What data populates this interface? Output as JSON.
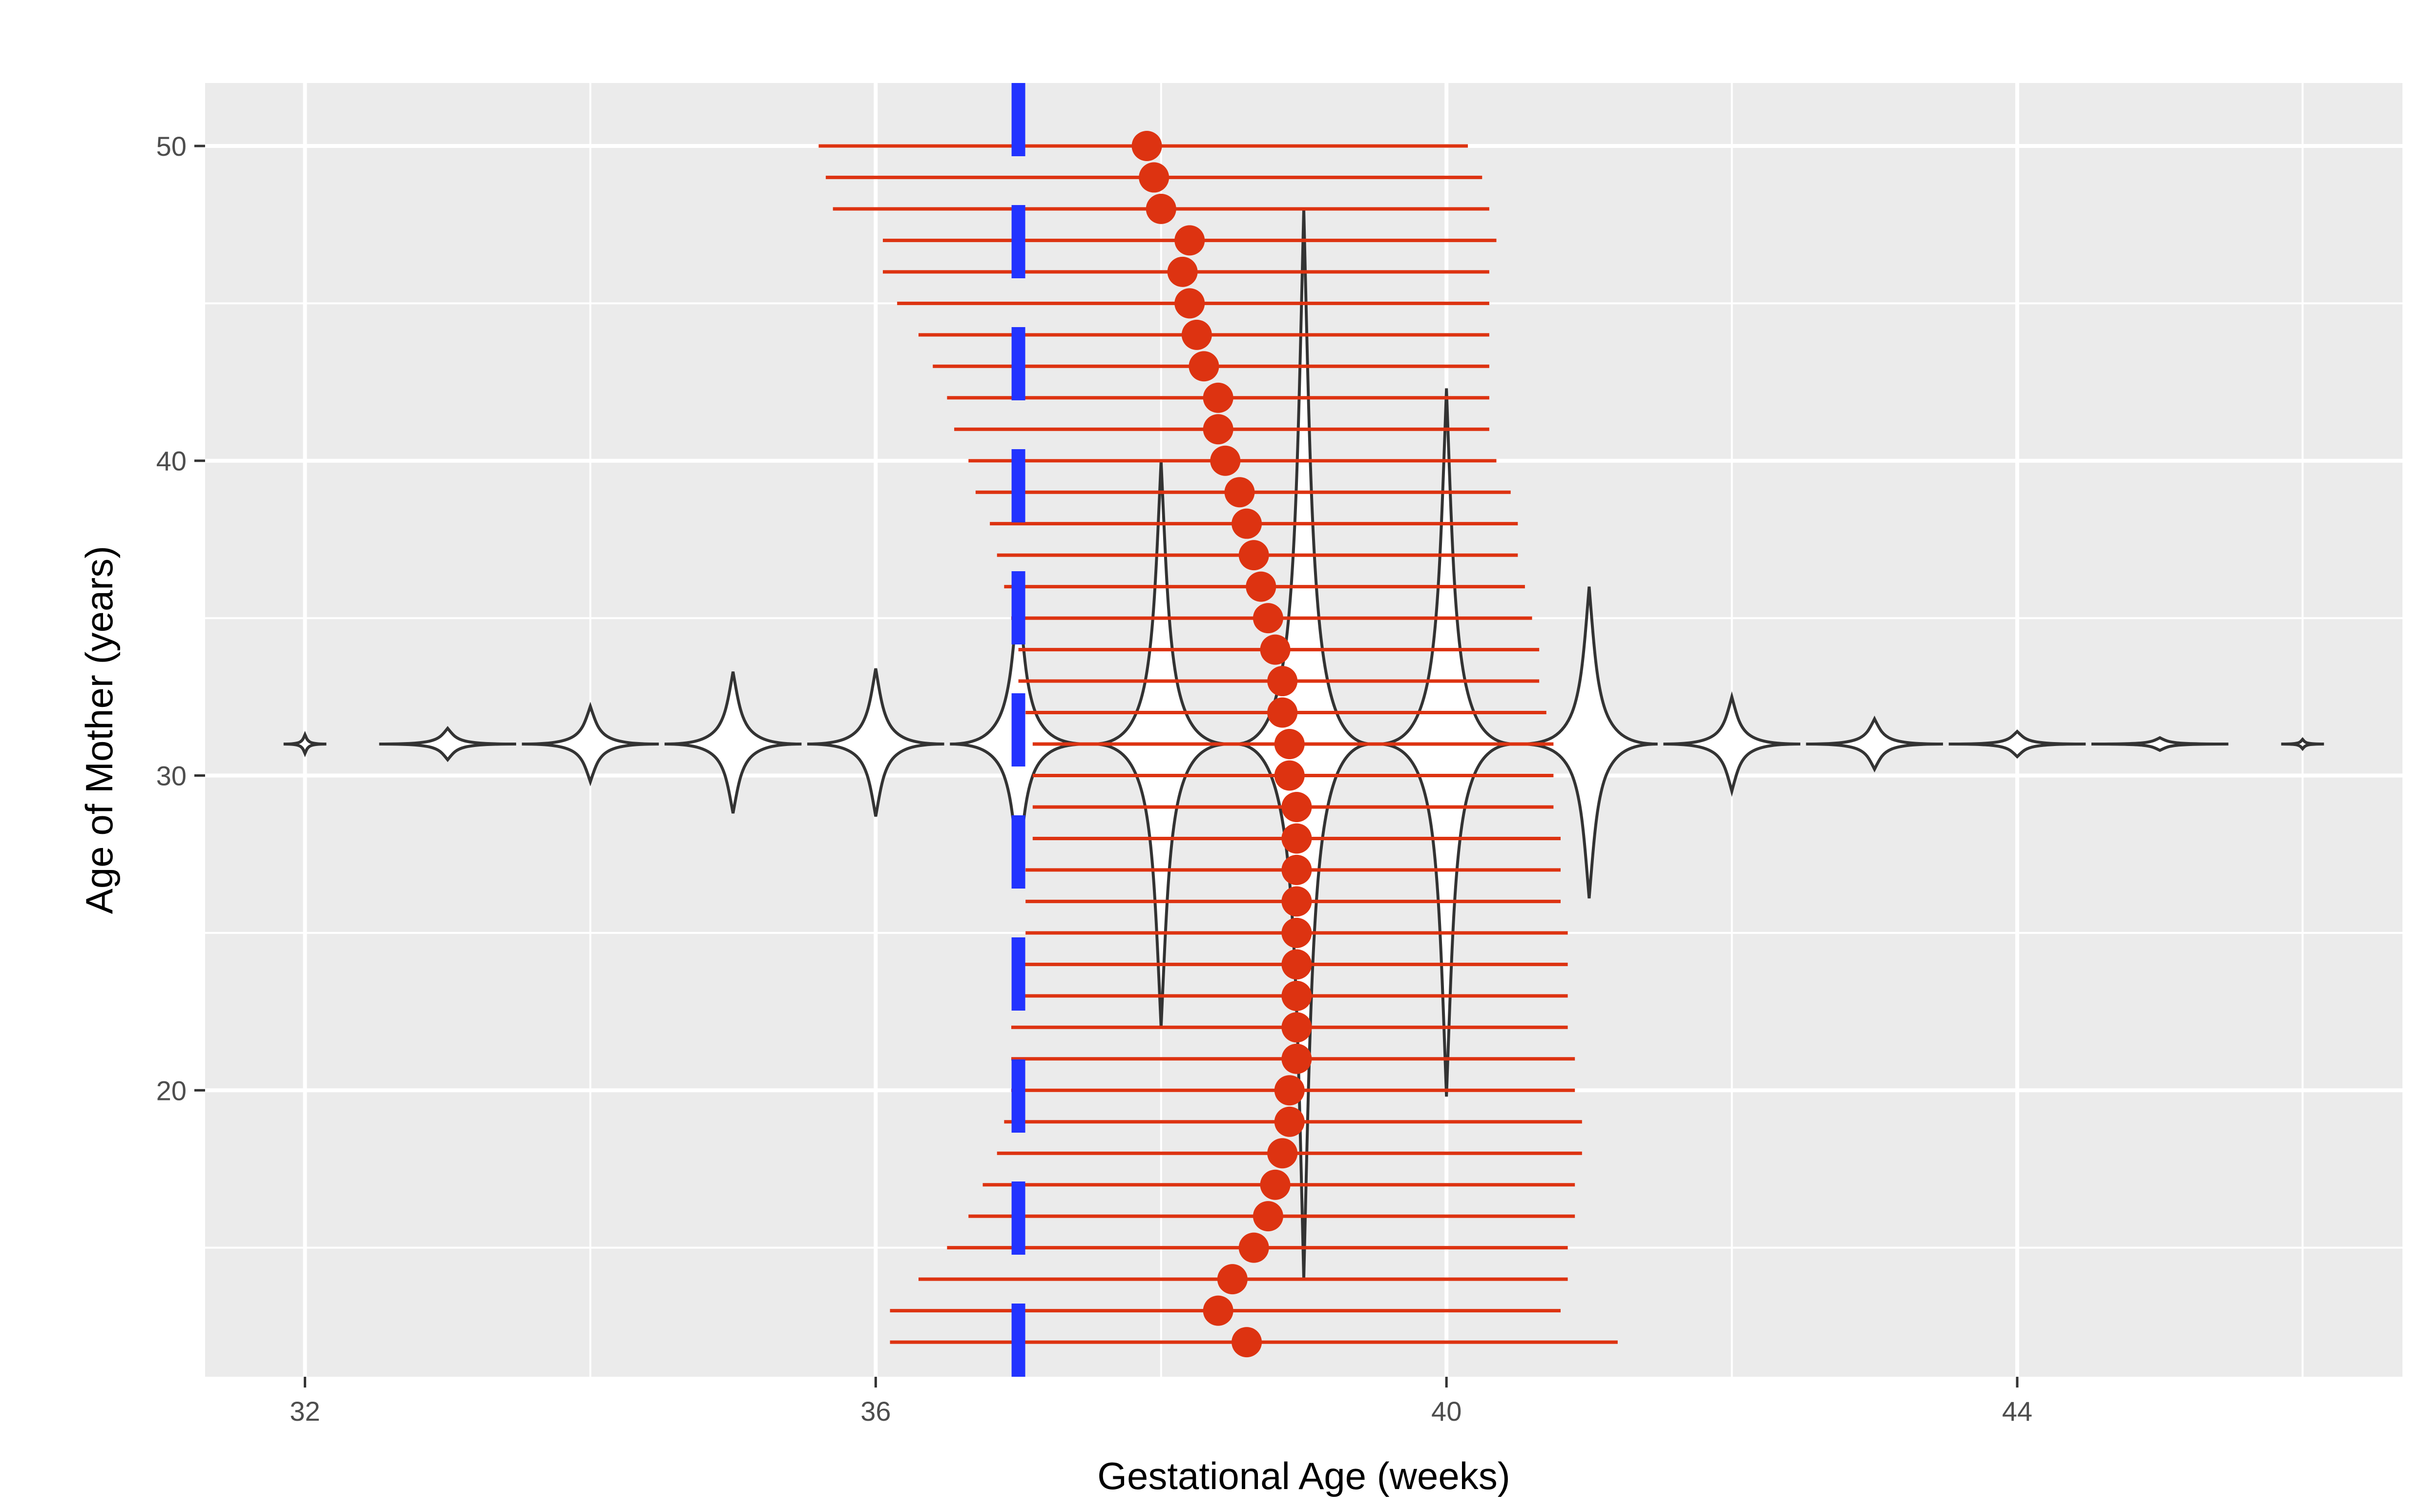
{
  "chart_data": {
    "type": "scatter",
    "xlabel": "Gestational Age (weeks)",
    "ylabel": "Age of Mother (years)",
    "xlim": [
      31.3,
      46.7
    ],
    "ylim": [
      10.9,
      52.0
    ],
    "x_ticks": [
      32,
      36,
      40,
      44
    ],
    "y_ticks": [
      20,
      30,
      40,
      50
    ],
    "grid": true,
    "legend": "none",
    "colors": {
      "panel_bg": "#ebebeb",
      "grid": "#ffffff",
      "points": "#dd3311",
      "intervals": "#dd3311",
      "reference_line": "#2233ff",
      "violin_fill": "#ffffff",
      "violin_stroke": "#333333"
    },
    "reference_line": {
      "orientation": "vertical",
      "x": 37,
      "style": "dashed"
    },
    "violins": {
      "center_y": 31,
      "items": [
        {
          "x": 32,
          "y_min": 30.7,
          "y_max": 31.3
        },
        {
          "x": 33,
          "y_min": 30.5,
          "y_max": 31.5
        },
        {
          "x": 34,
          "y_min": 29.8,
          "y_max": 32.2
        },
        {
          "x": 35,
          "y_min": 28.8,
          "y_max": 33.3
        },
        {
          "x": 36,
          "y_min": 28.7,
          "y_max": 33.4
        },
        {
          "x": 37,
          "y_min": 27.0,
          "y_max": 36.0
        },
        {
          "x": 38,
          "y_min": 22.0,
          "y_max": 40.0
        },
        {
          "x": 39,
          "y_min": 14.0,
          "y_max": 48.0
        },
        {
          "x": 40,
          "y_min": 19.8,
          "y_max": 42.3
        },
        {
          "x": 41,
          "y_min": 26.1,
          "y_max": 36.0
        },
        {
          "x": 42,
          "y_min": 29.5,
          "y_max": 32.5
        },
        {
          "x": 43,
          "y_min": 30.2,
          "y_max": 31.8
        },
        {
          "x": 44,
          "y_min": 30.6,
          "y_max": 31.4
        },
        {
          "x": 45,
          "y_min": 30.8,
          "y_max": 31.2
        },
        {
          "x": 46,
          "y_min": 30.85,
          "y_max": 31.15
        }
      ]
    },
    "series": [
      {
        "values": [
          {
            "y": 50,
            "x": 37.9,
            "lo": 35.6,
            "hi": 40.15
          },
          {
            "y": 49,
            "x": 37.95,
            "lo": 35.65,
            "hi": 40.25
          },
          {
            "y": 48,
            "x": 38.0,
            "lo": 35.7,
            "hi": 40.3
          },
          {
            "y": 47,
            "x": 38.2,
            "lo": 36.05,
            "hi": 40.35
          },
          {
            "y": 46,
            "x": 38.15,
            "lo": 36.05,
            "hi": 40.3
          },
          {
            "y": 45,
            "x": 38.2,
            "lo": 36.15,
            "hi": 40.3
          },
          {
            "y": 44,
            "x": 38.25,
            "lo": 36.3,
            "hi": 40.3
          },
          {
            "y": 43,
            "x": 38.3,
            "lo": 36.4,
            "hi": 40.3
          },
          {
            "y": 42,
            "x": 38.4,
            "lo": 36.5,
            "hi": 40.3
          },
          {
            "y": 41,
            "x": 38.4,
            "lo": 36.55,
            "hi": 40.3
          },
          {
            "y": 40,
            "x": 38.45,
            "lo": 36.65,
            "hi": 40.35
          },
          {
            "y": 39,
            "x": 38.55,
            "lo": 36.7,
            "hi": 40.45
          },
          {
            "y": 38,
            "x": 38.6,
            "lo": 36.8,
            "hi": 40.5
          },
          {
            "y": 37,
            "x": 38.65,
            "lo": 36.85,
            "hi": 40.5
          },
          {
            "y": 36,
            "x": 38.7,
            "lo": 36.9,
            "hi": 40.55
          },
          {
            "y": 35,
            "x": 38.75,
            "lo": 36.95,
            "hi": 40.6
          },
          {
            "y": 34,
            "x": 38.8,
            "lo": 37.0,
            "hi": 40.65
          },
          {
            "y": 33,
            "x": 38.85,
            "lo": 37.0,
            "hi": 40.65
          },
          {
            "y": 32,
            "x": 38.85,
            "lo": 37.05,
            "hi": 40.7
          },
          {
            "y": 31,
            "x": 38.9,
            "lo": 37.1,
            "hi": 40.75
          },
          {
            "y": 30,
            "x": 38.9,
            "lo": 37.1,
            "hi": 40.75
          },
          {
            "y": 29,
            "x": 38.95,
            "lo": 37.1,
            "hi": 40.75
          },
          {
            "y": 28,
            "x": 38.95,
            "lo": 37.1,
            "hi": 40.8
          },
          {
            "y": 27,
            "x": 38.95,
            "lo": 37.05,
            "hi": 40.8
          },
          {
            "y": 26,
            "x": 38.95,
            "lo": 37.05,
            "hi": 40.8
          },
          {
            "y": 25,
            "x": 38.95,
            "lo": 37.05,
            "hi": 40.85
          },
          {
            "y": 24,
            "x": 38.95,
            "lo": 37.0,
            "hi": 40.85
          },
          {
            "y": 23,
            "x": 38.95,
            "lo": 37.0,
            "hi": 40.85
          },
          {
            "y": 22,
            "x": 38.95,
            "lo": 36.95,
            "hi": 40.85
          },
          {
            "y": 21,
            "x": 38.95,
            "lo": 36.95,
            "hi": 40.9
          },
          {
            "y": 20,
            "x": 38.9,
            "lo": 36.95,
            "hi": 40.9
          },
          {
            "y": 19,
            "x": 38.9,
            "lo": 36.9,
            "hi": 40.95
          },
          {
            "y": 18,
            "x": 38.85,
            "lo": 36.85,
            "hi": 40.95
          },
          {
            "y": 17,
            "x": 38.8,
            "lo": 36.75,
            "hi": 40.9
          },
          {
            "y": 16,
            "x": 38.75,
            "lo": 36.65,
            "hi": 40.9
          },
          {
            "y": 15,
            "x": 38.65,
            "lo": 36.5,
            "hi": 40.85
          },
          {
            "y": 14,
            "x": 38.5,
            "lo": 36.3,
            "hi": 40.85
          },
          {
            "y": 13,
            "x": 38.4,
            "lo": 36.1,
            "hi": 40.8
          },
          {
            "y": 12,
            "x": 38.6,
            "lo": 36.1,
            "hi": 41.2
          }
        ]
      }
    ]
  }
}
